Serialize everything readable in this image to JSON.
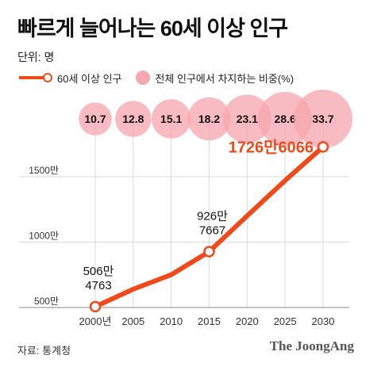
{
  "title": "빠르게 늘어나는 60세 이상 인구",
  "unit_label": "단위: 명",
  "legend": {
    "line_label": "60세 이상 인구",
    "bubble_label": "전체 인구에서 차지하는 비중(%)"
  },
  "source": "자료: 통계청",
  "brand": "The JoongAng",
  "colors": {
    "line": "#f04a1a",
    "bubble": "#f6a8b0",
    "axis_text": "#333333",
    "grid": "#d9d9d9"
  },
  "chart_data": {
    "type": "line",
    "x": [
      2000,
      2005,
      2010,
      2015,
      2020,
      2025,
      2030
    ],
    "x_tick_labels": [
      "2000년",
      "2005",
      "2010",
      "2015",
      "2020",
      "2025",
      "2030"
    ],
    "y_tick_labels": [
      "500만",
      "1000만",
      "1500만"
    ],
    "y_ticks": [
      5000000,
      10000000,
      15000000
    ],
    "ylim": [
      5000000,
      18500000
    ],
    "grid": true,
    "series": [
      {
        "name": "60세 이상 인구",
        "values": [
          5064763,
          6400000,
          7500000,
          9267667,
          12000000,
          14700000,
          17266066
        ]
      },
      {
        "name": "전체 인구에서 차지하는 비중(%)",
        "values": [
          10.7,
          12.8,
          15.1,
          18.2,
          23.1,
          28.6,
          33.7
        ],
        "labels": [
          "10.7",
          "12.8",
          "15.1",
          "18.2",
          "23.1",
          "28.6",
          "33.7"
        ]
      }
    ],
    "annotations": [
      {
        "x": 2000,
        "lines": [
          "506만",
          "4763"
        ]
      },
      {
        "x": 2015,
        "lines": [
          "926만",
          "7667"
        ]
      },
      {
        "x": 2030,
        "lines": [
          "1726만6066"
        ]
      }
    ]
  }
}
